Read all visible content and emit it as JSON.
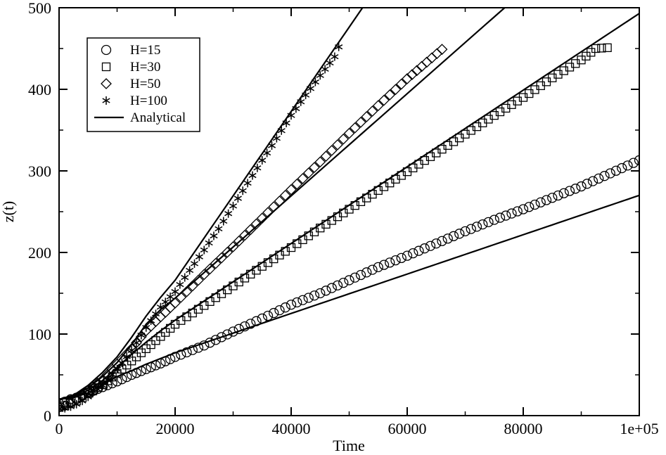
{
  "chart_data": {
    "type": "scatter",
    "title": "",
    "xlabel": "Time",
    "ylabel": "z(t)",
    "xlim": [
      0,
      100000
    ],
    "ylim": [
      0,
      500
    ],
    "xticks": [
      0,
      20000,
      40000,
      60000,
      80000,
      100000
    ],
    "xtick_labels": [
      "0",
      "20000",
      "40000",
      "60000",
      "80000",
      "1e+05"
    ],
    "yticks": [
      0,
      100,
      200,
      300,
      400,
      500
    ],
    "ytick_labels": [
      "0",
      "100",
      "200",
      "300",
      "400",
      "500"
    ],
    "grid": false,
    "legend_position": "top-left",
    "series": [
      {
        "name": "H=15",
        "marker": "circle",
        "kind": "points",
        "x": [
          0,
          1000,
          2000,
          3000,
          4000,
          5000,
          7500,
          10000,
          12500,
          15000,
          17500,
          20000,
          25000,
          30000,
          35000,
          40000,
          45000,
          50000,
          55000,
          60000,
          65000,
          70000,
          75000,
          80000,
          85000,
          90000,
          95000,
          100000
        ],
        "y": [
          15,
          17,
          20,
          22,
          25,
          28,
          35,
          42,
          50,
          57,
          64,
          72,
          86,
          103,
          119,
          136,
          150,
          166,
          182,
          196,
          211,
          226,
          240,
          253,
          267,
          281,
          297,
          313
        ]
      },
      {
        "name": "H=30",
        "marker": "square",
        "kind": "points",
        "x": [
          0,
          1000,
          2000,
          3000,
          4000,
          5000,
          7500,
          10000,
          12500,
          15000,
          17500,
          20000,
          25000,
          30000,
          35000,
          40000,
          45000,
          50000,
          55000,
          60000,
          65000,
          70000,
          75000,
          80000,
          85000,
          90000,
          92500,
          94500
        ],
        "y": [
          10,
          12,
          15,
          18,
          22,
          27,
          38,
          52,
          67,
          82,
          97,
          112,
          135,
          159,
          183,
          206,
          230,
          253,
          276,
          299,
          322,
          345,
          368,
          390,
          414,
          436,
          450,
          451
        ]
      },
      {
        "name": "H=50",
        "marker": "diamond",
        "kind": "points",
        "x": [
          0,
          1000,
          2000,
          3000,
          4000,
          5000,
          7500,
          10000,
          12500,
          15000,
          17500,
          20000,
          25000,
          30000,
          35000,
          40000,
          45000,
          50000,
          55000,
          60000,
          62500,
          66000
        ],
        "y": [
          10,
          12,
          15,
          19,
          25,
          31,
          44,
          63,
          82,
          104,
          121,
          138,
          173,
          207,
          242,
          277,
          311,
          346,
          380,
          413,
          428,
          449
        ]
      },
      {
        "name": "H=100",
        "marker": "star",
        "kind": "points",
        "x": [
          0,
          1000,
          2000,
          3000,
          4000,
          5000,
          7500,
          10000,
          12500,
          15000,
          17500,
          20000,
          22500,
          25000,
          27500,
          30000,
          32500,
          35000,
          37500,
          40000,
          42500,
          45000,
          47500,
          48200
        ],
        "y": [
          8,
          9,
          11,
          14,
          18,
          23,
          37,
          57,
          80,
          108,
          133,
          152,
          178,
          203,
          229,
          257,
          285,
          313,
          340,
          368,
          393,
          417,
          440,
          452
        ]
      },
      {
        "name": "Analytical",
        "marker": "line",
        "kind": "line",
        "lines": [
          {
            "x": [
              0,
              2500,
              5000,
              7500,
              10000,
              12500,
              15000,
              17500,
              20000,
              100000
            ],
            "y": [
              20,
              22,
              28,
              38,
              48,
              55,
              63,
              70,
              77,
              270
            ]
          },
          {
            "x": [
              0,
              2500,
              5000,
              7500,
              10000,
              12500,
              15000,
              17500,
              20000,
              100000
            ],
            "y": [
              20,
              23,
              31,
              43,
              59,
              75,
              90,
              104,
              117,
              493
            ]
          },
          {
            "x": [
              0,
              2500,
              5000,
              7500,
              10000,
              12500,
              15000,
              17500,
              20000,
              76800
            ],
            "y": [
              20,
              24,
              34,
              48,
              65,
              87,
              112,
              130,
              144,
              500
            ]
          },
          {
            "x": [
              0,
              2500,
              5000,
              7500,
              10000,
              12500,
              15000,
              17500,
              20000,
              52300
            ],
            "y": [
              20,
              25,
              37,
              53,
              72,
              96,
              122,
              145,
              166,
              500
            ]
          }
        ]
      }
    ]
  }
}
